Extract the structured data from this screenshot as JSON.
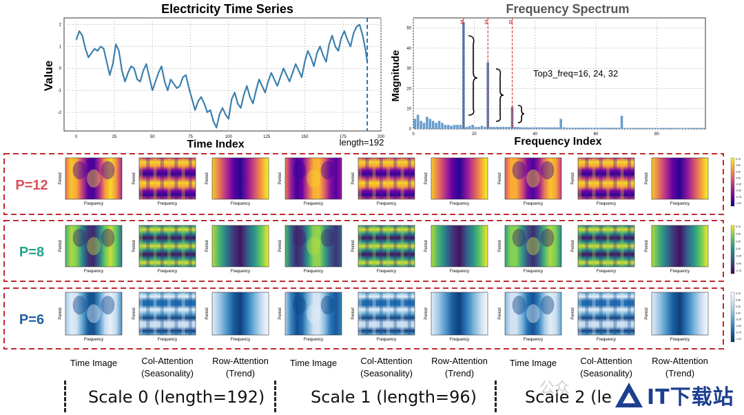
{
  "chart_data": [
    {
      "type": "line",
      "title": "Electricity Time Series",
      "xlabel": "Time Index",
      "ylabel": "Value",
      "xlim": [
        -8,
        200
      ],
      "ylim": [
        -2.85,
        2.3
      ],
      "xticks": [
        0,
        25,
        50,
        75,
        100,
        125,
        150,
        175,
        200
      ],
      "yticks": [
        -2,
        -1,
        0,
        1,
        2
      ],
      "annotation": "length=192",
      "cutoff_x": 191,
      "series": [
        {
          "name": "electricity",
          "x": [
            0,
            2,
            4,
            6,
            8,
            10,
            12,
            14,
            16,
            18,
            20,
            22,
            24,
            26,
            28,
            30,
            32,
            34,
            36,
            38,
            40,
            42,
            44,
            46,
            48,
            50,
            52,
            54,
            56,
            58,
            60,
            62,
            64,
            66,
            68,
            70,
            72,
            74,
            76,
            78,
            80,
            82,
            84,
            86,
            88,
            90,
            92,
            94,
            96,
            98,
            100,
            102,
            104,
            106,
            108,
            110,
            112,
            114,
            116,
            118,
            120,
            122,
            124,
            126,
            128,
            130,
            132,
            134,
            136,
            138,
            140,
            142,
            144,
            146,
            148,
            150,
            152,
            154,
            156,
            158,
            160,
            162,
            164,
            166,
            168,
            170,
            172,
            174,
            176,
            178,
            180,
            182,
            184,
            186,
            188,
            190,
            191
          ],
          "values": [
            1.3,
            1.7,
            1.5,
            0.9,
            0.5,
            0.7,
            0.9,
            0.8,
            1.0,
            0.9,
            0.3,
            -0.3,
            0.2,
            1.1,
            0.8,
            -0.1,
            -0.6,
            -0.2,
            0.1,
            0.0,
            -0.5,
            -0.6,
            -0.1,
            0.2,
            -0.4,
            -1.0,
            -0.6,
            -0.2,
            0.1,
            -0.6,
            -1.0,
            -0.5,
            -0.7,
            -0.9,
            -0.8,
            -0.4,
            -0.3,
            -0.9,
            -1.4,
            -1.9,
            -1.5,
            -1.3,
            -1.6,
            -2.0,
            -1.9,
            -2.4,
            -2.7,
            -2.1,
            -1.8,
            -2.1,
            -2.3,
            -1.4,
            -1.1,
            -1.6,
            -1.8,
            -1.2,
            -0.8,
            -1.3,
            -1.6,
            -1.0,
            -0.5,
            -0.8,
            -1.1,
            -0.6,
            -0.2,
            -0.5,
            -0.8,
            -0.4,
            0.0,
            -0.3,
            -0.6,
            -0.2,
            0.2,
            -0.1,
            -0.4,
            0.3,
            0.8,
            0.5,
            0.1,
            0.7,
            1.0,
            0.6,
            0.3,
            1.1,
            1.5,
            1.0,
            0.8,
            1.4,
            1.7,
            1.3,
            1.0,
            1.6,
            1.9,
            2.0,
            1.5,
            0.8,
            0.3
          ]
        }
      ]
    },
    {
      "type": "bar",
      "title": "Frequency Spectrum",
      "xlabel": "Frequency Index",
      "ylabel": "Magnitude",
      "xlim": [
        0,
        96
      ],
      "ylim": [
        0,
        55
      ],
      "xticks": [
        0,
        20,
        40,
        60,
        80
      ],
      "yticks": [
        0,
        10,
        20,
        30,
        40,
        50
      ],
      "annotation": "Top3_freq=16, 24, 32",
      "top_freqs": [
        16,
        24,
        32
      ],
      "top_labels": [
        "16",
        "24",
        "32"
      ],
      "values": [
        5.0,
        7.0,
        4.0,
        3.0,
        6.0,
        5.0,
        4.0,
        3.0,
        4.0,
        3.0,
        2.0,
        2.0,
        1.5,
        2.0,
        2.0,
        2.0,
        53.0,
        1.0,
        1.5,
        2.0,
        1.0,
        1.0,
        1.5,
        1.0,
        33.0,
        1.0,
        1.0,
        1.0,
        1.0,
        1.0,
        1.0,
        1.0,
        11.0,
        1.0,
        1.0,
        0.8,
        0.8,
        0.8,
        0.8,
        0.8,
        0.8,
        0.8,
        0.8,
        0.8,
        0.8,
        0.8,
        0.8,
        0.8,
        5.0,
        0.8,
        0.6,
        0.6,
        0.6,
        0.6,
        0.6,
        0.6,
        0.6,
        0.6,
        0.6,
        0.6,
        0.6,
        0.6,
        0.6,
        0.6,
        0.6,
        0.6,
        0.6,
        0.6,
        6.5,
        0.5,
        0.5,
        0.5,
        0.5,
        0.5,
        0.5,
        0.5,
        0.5,
        0.5,
        0.5,
        0.5,
        0.5,
        0.5,
        0.5,
        0.5,
        0.5,
        0.5,
        0.5,
        0.5,
        0.5,
        0.5,
        0.5,
        0.5,
        0.5,
        0.5,
        0.5,
        0.5
      ]
    },
    {
      "type": "heatmap",
      "rows": [
        {
          "label": "P=12",
          "label_color": "#d8505a",
          "cmap": "plasma",
          "colorbar_ticks": [
            "0.75",
            "0.50",
            "0.25",
            "0.00",
            "-0.25",
            "-0.50",
            "-0.75",
            "-1.00"
          ]
        },
        {
          "label": "P=8",
          "label_color": "#22a48c",
          "cmap": "viridis",
          "colorbar_ticks": [
            "0.75",
            "0.50",
            "0.25",
            "0.00",
            "-0.25",
            "-0.50",
            "-0.75"
          ]
        },
        {
          "label": "P=6",
          "label_color": "#1f5fa0",
          "cmap": "blues",
          "colorbar_ticks": [
            "0.75",
            "0.50",
            "0.25",
            "0.00",
            "-0.25",
            "-0.50",
            "-0.75",
            "-1.00"
          ]
        }
      ],
      "panel_xlabel": "Frequency",
      "panel_ylabel": "Period",
      "column_labels": [
        [
          "Time Image"
        ],
        [
          "Col-Attention",
          "(Seasonality)"
        ],
        [
          "Row-Attention",
          "(Trend)"
        ],
        [
          "Time Image"
        ],
        [
          "Col-Attention",
          "(Seasonality)"
        ],
        [
          "Row-Attention",
          "(Trend)"
        ],
        [
          "Time Image"
        ],
        [
          "Col-Attention",
          "(Seasonality)"
        ],
        [
          "Row-Attention",
          "(Trend)"
        ]
      ],
      "column_kinds": [
        "time",
        "col",
        "row",
        "time",
        "col",
        "row",
        "time",
        "col",
        "row"
      ],
      "scales": [
        "Scale 0 (length=192)",
        "Scale 1 (length=96)",
        "Scale 2 (le"
      ]
    }
  ],
  "watermark": "公众",
  "logo_text": "IT下载站"
}
